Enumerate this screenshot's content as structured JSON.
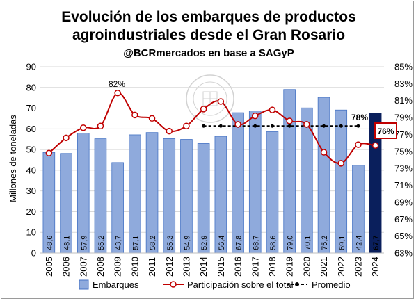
{
  "chart_data": {
    "type": "bar",
    "title_line1": "Evolución de los embarques de productos",
    "title_line2": "agroindustriales desde el Gran Rosario",
    "subtitle": "@BCRmercados en base a SAGyP",
    "ylabel": "Millones de toneladas",
    "ylim": [
      0,
      90
    ],
    "y_ticks": [
      "0",
      "10",
      "20",
      "30",
      "40",
      "50",
      "60",
      "70",
      "80",
      "90"
    ],
    "y2lim": [
      63,
      85
    ],
    "y2_ticks": [
      "63%",
      "65%",
      "67%",
      "69%",
      "71%",
      "73%",
      "75%",
      "77%",
      "79%",
      "81%",
      "83%",
      "85%"
    ],
    "grid": true,
    "legend_position": "bottom",
    "categories": [
      "2005",
      "2006",
      "2007",
      "2008",
      "2009",
      "2010",
      "2011",
      "2012",
      "2013",
      "2014",
      "2015",
      "2016",
      "2017",
      "2018",
      "2019",
      "2020",
      "2021",
      "2022",
      "2023",
      "2024"
    ],
    "series": [
      {
        "name": "Embarques",
        "type": "bar",
        "axis": "left",
        "color": "#8faadc",
        "highlight_color": "#0a1f5c",
        "values": [
          48.6,
          48.1,
          57.9,
          55.2,
          43.7,
          57.1,
          58.2,
          55.3,
          54.9,
          52.9,
          56.4,
          67.8,
          68.7,
          58.6,
          79.0,
          70.1,
          75.2,
          69.1,
          42.4,
          67.7
        ],
        "labels": [
          "48,6",
          "48,1",
          "57,9",
          "55,2",
          "43,7",
          "57,1",
          "58,2",
          "55,3",
          "54,9",
          "52,9",
          "56,4",
          "67,8",
          "68,7",
          "58,6",
          "79,0",
          "70,1",
          "75,2",
          "69,1",
          "42,4",
          "67,7"
        ]
      },
      {
        "name": "Participación sobre el total",
        "type": "line",
        "axis": "right",
        "color": "#c00000",
        "values": [
          74.8,
          76.6,
          77.8,
          78.0,
          81.9,
          79.3,
          78.9,
          77.4,
          78.0,
          80.0,
          80.9,
          78.2,
          79.2,
          79.9,
          78.6,
          78.2,
          74.9,
          73.6,
          75.8,
          75.7
        ]
      },
      {
        "name": "Promedio",
        "type": "line",
        "axis": "right",
        "color": "#000000",
        "values": [
          null,
          null,
          null,
          null,
          null,
          null,
          null,
          null,
          null,
          78.0,
          78.0,
          78.0,
          78.0,
          78.0,
          78.0,
          78.0,
          78.0,
          78.0,
          78.0,
          null
        ]
      }
    ],
    "annotations": {
      "peak_label": "82%",
      "average_label": "78%",
      "last_label": "76%"
    }
  }
}
